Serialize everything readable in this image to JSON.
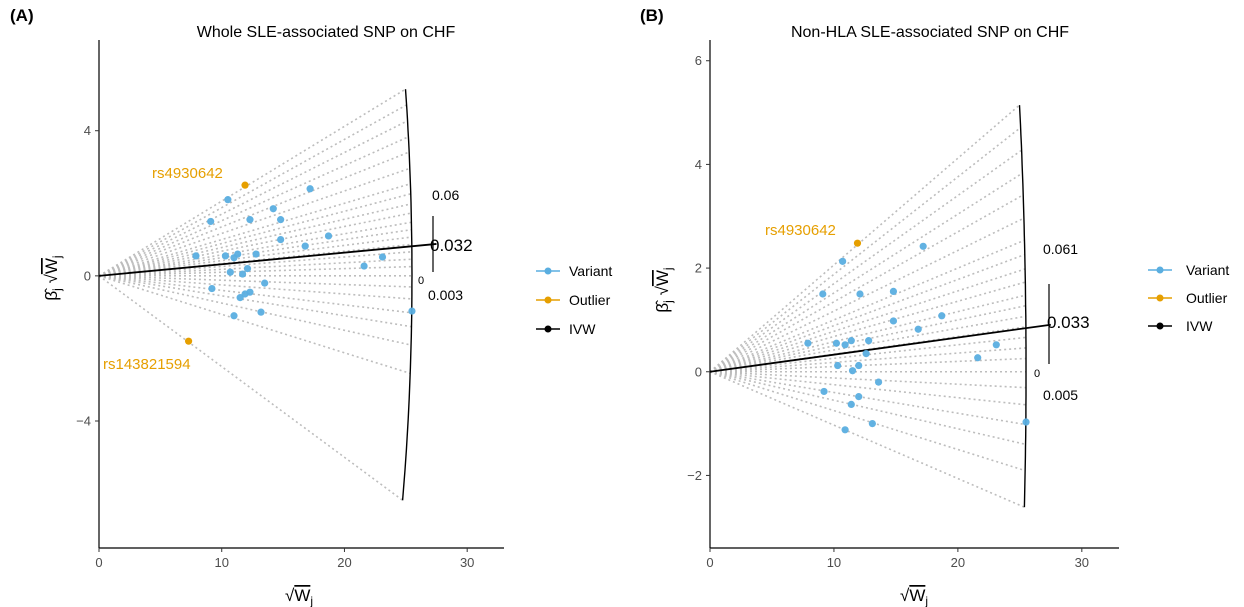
{
  "figure": {
    "colors": {
      "variant": "#5aaee0",
      "outlier": "#e69f00",
      "ivw": "#000000",
      "ray": "#bdbdbd"
    },
    "legend": [
      {
        "label": "Variant",
        "color": "#5aaee0"
      },
      {
        "label": "Outlier",
        "color": "#e69f00"
      },
      {
        "label": "IVW",
        "color": "#000000"
      }
    ]
  },
  "chart_data": [
    {
      "type": "scatter",
      "panel_label": "(A)",
      "title": "Whole SLE-associated SNP on CHF",
      "xlabel": "√W_j",
      "ylabel": "β̂_j √W_j",
      "xlim": [
        0,
        33
      ],
      "ylim": [
        -7.5,
        6.5
      ],
      "x_ticks": [
        "0",
        "10",
        "20",
        "30"
      ],
      "y_ticks": [
        "−4",
        "0",
        "4"
      ],
      "y_tick_values": [
        -4,
        0,
        4
      ],
      "arc_radius": 25.5,
      "ray_slopes": [
        0.206,
        0.188,
        0.17,
        0.152,
        0.135,
        0.117,
        0.1,
        0.089,
        0.078,
        0.068,
        0.058,
        0.05,
        0.042,
        0.034,
        0.026,
        0.018,
        0.01,
        0.0,
        -0.012,
        -0.025,
        -0.04,
        -0.055,
        -0.075,
        -0.106,
        -0.25
      ],
      "ivw_estimate": "0.032",
      "ivw_slope": 0.032,
      "ci_upper": "0.06",
      "ci_lower": "0.003",
      "zero_label": "0",
      "variants": [
        {
          "x": 7.9,
          "y": 0.55
        },
        {
          "x": 9.1,
          "y": 1.5
        },
        {
          "x": 10.5,
          "y": 2.1
        },
        {
          "x": 9.2,
          "y": -0.35
        },
        {
          "x": 10.3,
          "y": 0.55
        },
        {
          "x": 10.7,
          "y": 0.1
        },
        {
          "x": 11.0,
          "y": 0.5
        },
        {
          "x": 11.3,
          "y": 0.6
        },
        {
          "x": 11.7,
          "y": 0.05
        },
        {
          "x": 12.1,
          "y": 0.2
        },
        {
          "x": 12.3,
          "y": 1.55
        },
        {
          "x": 12.8,
          "y": 0.6
        },
        {
          "x": 11.5,
          "y": -0.6
        },
        {
          "x": 11.9,
          "y": -0.5
        },
        {
          "x": 12.3,
          "y": -0.45
        },
        {
          "x": 11.0,
          "y": -1.1
        },
        {
          "x": 13.2,
          "y": -1.0
        },
        {
          "x": 13.5,
          "y": -0.2
        },
        {
          "x": 14.2,
          "y": 1.85
        },
        {
          "x": 14.8,
          "y": 1.55
        },
        {
          "x": 14.8,
          "y": 1.0
        },
        {
          "x": 16.8,
          "y": 0.82
        },
        {
          "x": 17.2,
          "y": 2.4
        },
        {
          "x": 18.7,
          "y": 1.1
        },
        {
          "x": 21.6,
          "y": 0.27
        },
        {
          "x": 23.1,
          "y": 0.52
        },
        {
          "x": 25.5,
          "y": -0.97
        }
      ],
      "outliers": [
        {
          "x": 11.9,
          "y": 2.5,
          "label": "rs4930642"
        },
        {
          "x": 7.3,
          "y": -1.8,
          "label": "rs143821594"
        }
      ]
    },
    {
      "type": "scatter",
      "panel_label": "(B)",
      "title": "Non-HLA SLE-associated SNP on CHF",
      "xlabel": "√W_j",
      "ylabel": "β̂_j √W_j",
      "xlim": [
        0,
        33
      ],
      "ylim": [
        -3.4,
        6.4
      ],
      "x_ticks": [
        "0",
        "10",
        "20",
        "30"
      ],
      "y_ticks": [
        "−2",
        "0",
        "2",
        "4",
        "6"
      ],
      "y_tick_values": [
        -2,
        0,
        2,
        4,
        6
      ],
      "arc_radius": 25.5,
      "ray_slopes": [
        0.206,
        0.188,
        0.17,
        0.152,
        0.135,
        0.117,
        0.1,
        0.089,
        0.078,
        0.068,
        0.058,
        0.05,
        0.042,
        0.034,
        0.026,
        0.018,
        0.01,
        0.0,
        -0.012,
        -0.025,
        -0.04,
        -0.055,
        -0.075,
        -0.103
      ],
      "ivw_estimate": "0.033",
      "ivw_slope": 0.033,
      "ci_upper": "0.061",
      "ci_lower": "0.005",
      "zero_label": "0",
      "variants": [
        {
          "x": 7.9,
          "y": 0.55
        },
        {
          "x": 9.1,
          "y": 1.5
        },
        {
          "x": 10.7,
          "y": 2.13
        },
        {
          "x": 9.2,
          "y": -0.38
        },
        {
          "x": 10.2,
          "y": 0.55
        },
        {
          "x": 10.3,
          "y": 0.12
        },
        {
          "x": 10.9,
          "y": 0.52
        },
        {
          "x": 11.4,
          "y": 0.6
        },
        {
          "x": 11.5,
          "y": 0.02
        },
        {
          "x": 12.0,
          "y": 0.12
        },
        {
          "x": 12.1,
          "y": 1.5
        },
        {
          "x": 12.6,
          "y": 0.35
        },
        {
          "x": 12.8,
          "y": 0.6
        },
        {
          "x": 11.4,
          "y": -0.63
        },
        {
          "x": 12.0,
          "y": -0.48
        },
        {
          "x": 10.9,
          "y": -1.12
        },
        {
          "x": 13.1,
          "y": -1.0
        },
        {
          "x": 13.6,
          "y": -0.2
        },
        {
          "x": 14.8,
          "y": 1.55
        },
        {
          "x": 14.8,
          "y": 0.98
        },
        {
          "x": 16.8,
          "y": 0.82
        },
        {
          "x": 17.2,
          "y": 2.42
        },
        {
          "x": 18.7,
          "y": 1.08
        },
        {
          "x": 21.6,
          "y": 0.27
        },
        {
          "x": 23.1,
          "y": 0.52
        },
        {
          "x": 25.5,
          "y": -0.97
        }
      ],
      "outliers": [
        {
          "x": 11.9,
          "y": 2.48,
          "label": "rs4930642"
        }
      ]
    }
  ]
}
